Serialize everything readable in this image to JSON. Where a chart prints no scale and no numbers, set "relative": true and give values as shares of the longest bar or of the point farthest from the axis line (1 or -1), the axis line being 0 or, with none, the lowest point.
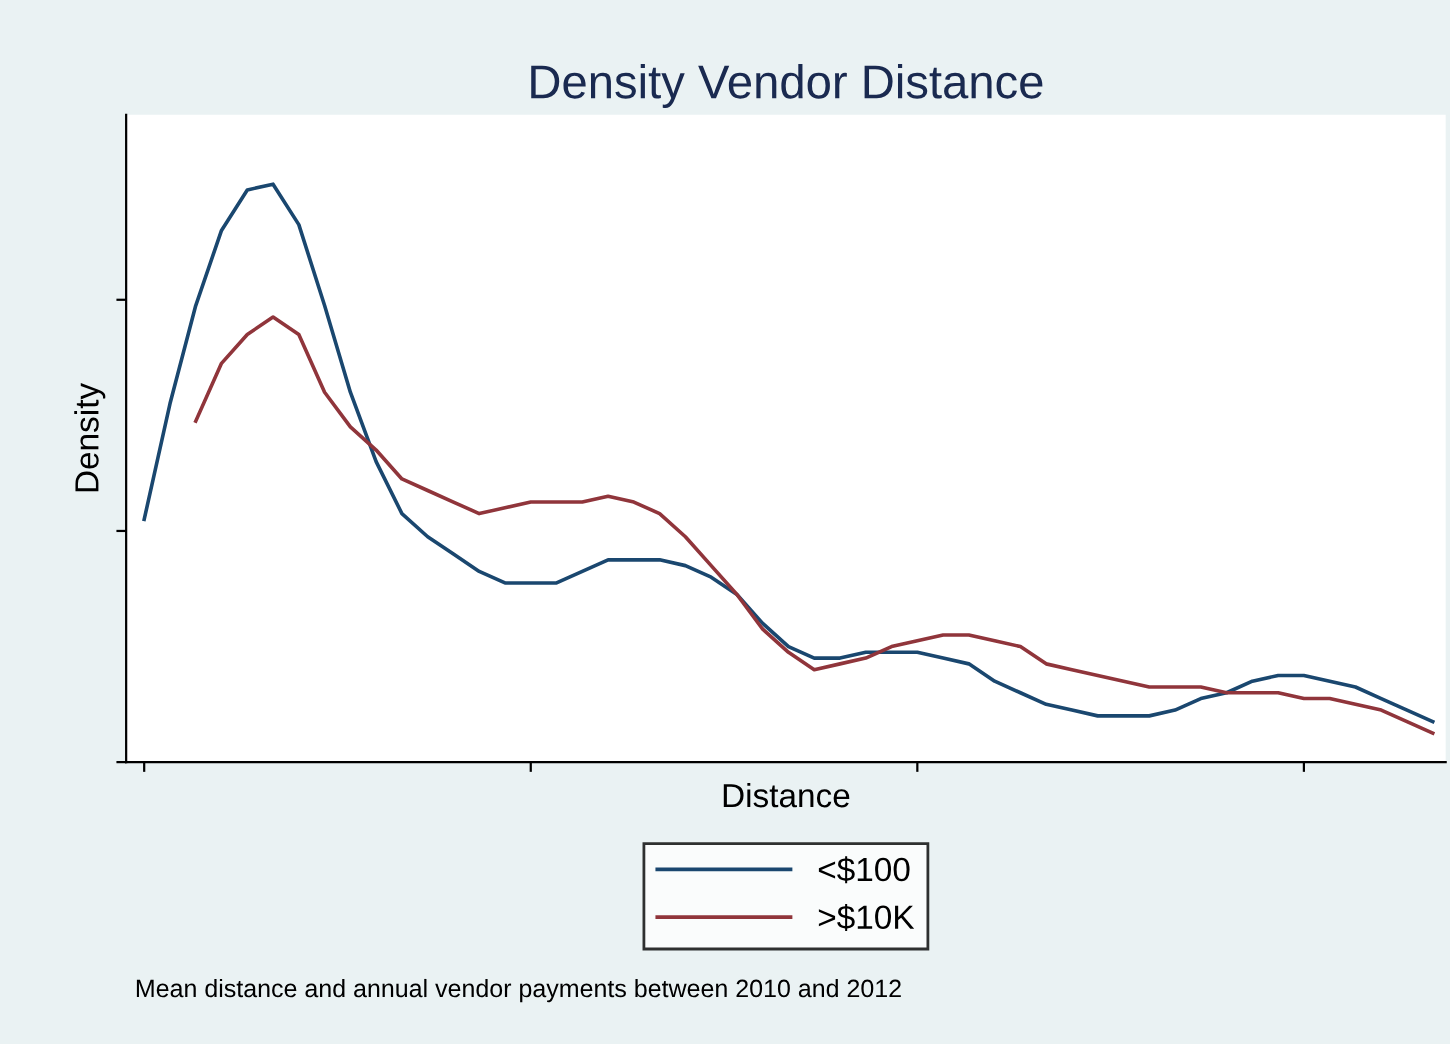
{
  "chart_data": {
    "type": "line",
    "title": "Density Vendor Distance",
    "xlabel": "Distance",
    "ylabel": "Density",
    "relative": true,
    "categories": [
      null,
      null,
      null,
      null,
      null,
      null,
      null,
      null,
      null,
      null,
      null,
      null,
      null,
      null,
      null,
      null,
      null,
      null,
      null,
      null,
      null,
      null,
      null,
      null,
      null,
      null,
      null,
      null,
      null,
      null,
      null,
      null,
      null,
      null,
      null,
      null,
      null,
      null,
      null,
      null,
      null,
      null,
      null,
      null,
      null,
      null,
      null,
      null,
      null,
      null,
      null
    ],
    "series": [
      {
        "name": "<$100",
        "color": "#1a476f",
        "values": [
          0.42,
          0.62,
          0.79,
          0.92,
          0.99,
          1,
          0.93,
          0.79,
          0.64,
          0.52,
          0.43,
          0.39,
          0.36,
          0.33,
          0.31,
          0.31,
          0.31,
          0.33,
          0.35,
          0.35,
          0.35,
          0.34,
          0.32,
          0.29,
          0.24,
          0.2,
          0.18,
          0.18,
          0.19,
          0.19,
          0.19,
          0.18,
          0.17,
          0.14,
          0.12,
          0.1,
          0.09,
          0.08,
          0.08,
          0.08,
          0.09,
          0.11,
          0.12,
          0.14,
          0.15,
          0.15,
          0.14,
          0.13,
          0.11,
          0.09,
          0.07
        ]
      },
      {
        "name": ">$10K",
        "color": "#90353b",
        "values": [
          null,
          null,
          0.59,
          0.69,
          0.74,
          0.77,
          0.74,
          0.64,
          0.58,
          0.54,
          0.49,
          0.47,
          0.45,
          0.43,
          0.44,
          0.45,
          0.45,
          0.45,
          0.46,
          0.45,
          0.43,
          0.39,
          0.34,
          0.29,
          0.23,
          0.19,
          0.16,
          0.17,
          0.18,
          0.2,
          0.21,
          0.22,
          0.22,
          0.21,
          0.2,
          0.17,
          0.16,
          0.15,
          0.14,
          0.13,
          0.13,
          0.13,
          0.12,
          0.12,
          0.12,
          0.11,
          0.11,
          0.1,
          0.09,
          0.07,
          0.05
        ]
      }
    ],
    "legend": "bottom",
    "annotations": [
      "Mean distance and annual vendor payments between 2010 and 2012"
    ]
  }
}
